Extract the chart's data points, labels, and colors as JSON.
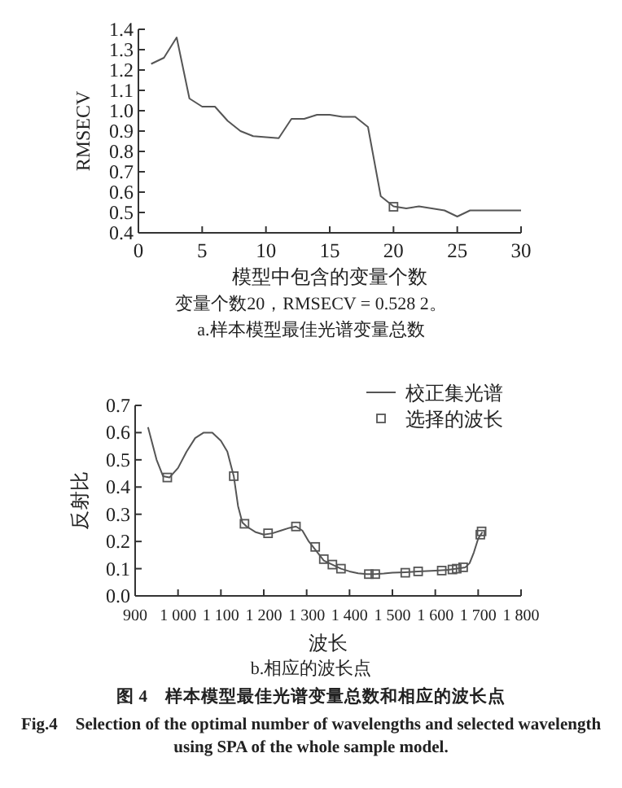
{
  "chart_data": [
    {
      "type": "line",
      "xlabel": "模型中包含的变量个数",
      "ylabel": "RMSECV",
      "xlim": [
        0,
        30
      ],
      "ylim": [
        0.4,
        1.4
      ],
      "xticks": [
        0,
        5,
        10,
        15,
        20,
        25,
        30
      ],
      "yticks": [
        0.4,
        0.5,
        0.6,
        0.7,
        0.8,
        0.9,
        {
          "value": 1.0,
          "label": "1.0"
        },
        1.1,
        1.2,
        1.3,
        1.4
      ],
      "series": [
        {
          "color": "#555555",
          "x": [
            1,
            2,
            3,
            4,
            5,
            6,
            7,
            8,
            9,
            10,
            11,
            12,
            13,
            14,
            15,
            16,
            17,
            18,
            19,
            20,
            21,
            22,
            23,
            24,
            25,
            26,
            27,
            28,
            29,
            30
          ],
          "values": [
            1.23,
            1.26,
            1.36,
            1.06,
            1.02,
            1.02,
            0.95,
            0.9,
            0.875,
            0.87,
            0.865,
            0.96,
            0.96,
            0.98,
            0.98,
            0.97,
            0.97,
            0.92,
            0.58,
            0.53,
            0.52,
            0.53,
            0.52,
            0.51,
            0.48,
            0.51,
            0.51,
            0.51,
            0.51,
            0.51
          ]
        },
        {
          "type": "scatter",
          "marker": "square",
          "color": "#555555",
          "x": [
            20
          ],
          "values": [
            0.528
          ]
        }
      ],
      "annotations": [
        "变量个数20，RMSECV = 0.528 2。",
        "a.样本模型最佳光谱变量总数"
      ]
    },
    {
      "type": "line",
      "xlabel": "波长",
      "ylabel": "反射比",
      "xlim": [
        900,
        1800
      ],
      "ylim": [
        0,
        0.7
      ],
      "xticks": [
        900,
        {
          "value": 1000,
          "label": "1 000"
        },
        {
          "value": 1100,
          "label": "1 100"
        },
        {
          "value": 1200,
          "label": "1 200"
        },
        {
          "value": 1300,
          "label": "1 300"
        },
        {
          "value": 1400,
          "label": "1 400"
        },
        {
          "value": 1500,
          "label": "1 500"
        },
        {
          "value": 1600,
          "label": "1 600"
        },
        {
          "value": 1700,
          "label": "1 700"
        },
        {
          "value": 1800,
          "label": "1 800"
        }
      ],
      "yticks": [
        {
          "value": 0,
          "label": "0.0"
        },
        0.1,
        0.2,
        0.3,
        0.4,
        0.5,
        0.6,
        0.7
      ],
      "legend": "top right",
      "series": [
        {
          "name": "校正集光谱",
          "color": "#555555",
          "x": [
            930,
            950,
            965,
            980,
            1000,
            1020,
            1040,
            1060,
            1080,
            1100,
            1115,
            1125,
            1130,
            1140,
            1150,
            1160,
            1180,
            1200,
            1220,
            1240,
            1260,
            1275,
            1290,
            1305,
            1320,
            1340,
            1360,
            1380,
            1400,
            1420,
            1440,
            1460,
            1480,
            1500,
            1530,
            1560,
            1600,
            1630,
            1650,
            1670,
            1680,
            1690,
            1700,
            1710
          ],
          "values": [
            0.62,
            0.5,
            0.44,
            0.435,
            0.47,
            0.53,
            0.58,
            0.6,
            0.6,
            0.57,
            0.53,
            0.47,
            0.44,
            0.33,
            0.27,
            0.255,
            0.235,
            0.225,
            0.23,
            0.24,
            0.25,
            0.255,
            0.24,
            0.2,
            0.17,
            0.13,
            0.115,
            0.1,
            0.09,
            0.083,
            0.08,
            0.08,
            0.082,
            0.085,
            0.087,
            0.09,
            0.093,
            0.096,
            0.1,
            0.105,
            0.12,
            0.16,
            0.21,
            0.235
          ]
        },
        {
          "type": "scatter",
          "name": "选择的波长",
          "marker": "square",
          "color": "#555555",
          "x": [
            975,
            1130,
            1155,
            1210,
            1275,
            1320,
            1340,
            1360,
            1380,
            1445,
            1460,
            1530,
            1560,
            1615,
            1640,
            1650,
            1665,
            1705,
            1708
          ],
          "values": [
            0.435,
            0.44,
            0.265,
            0.23,
            0.255,
            0.18,
            0.135,
            0.115,
            0.1,
            0.08,
            0.08,
            0.085,
            0.09,
            0.093,
            0.097,
            0.1,
            0.105,
            0.225,
            0.237
          ]
        }
      ],
      "annotations": [
        "b.相应的波长点",
        "图 4　样本模型最佳光谱变量总数和相应的波长点",
        "Fig.4　Selection of the optimal number of wavelengths and selected wavelength using SPA of the whole sample model."
      ]
    }
  ]
}
